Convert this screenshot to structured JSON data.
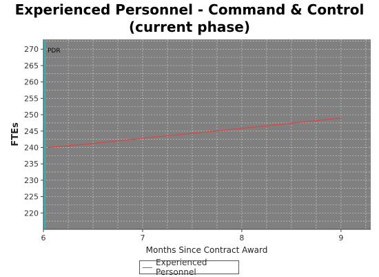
{
  "chart_data": {
    "type": "line",
    "title_line1": "Experienced Personnel - Command & Control",
    "title_line2": "(current phase)",
    "xlabel": "Months Since Contract Award",
    "ylabel": "FTEs",
    "xlim": [
      6,
      9.3
    ],
    "ylim": [
      215,
      273
    ],
    "x_ticks": [
      6,
      7,
      8,
      9
    ],
    "y_ticks": [
      220,
      225,
      230,
      235,
      240,
      245,
      250,
      255,
      260,
      265,
      270
    ],
    "grid": true,
    "legend_position": "bottom",
    "annotation": "PDR",
    "series": [
      {
        "name": "Experienced Personnel",
        "color": "#e04040",
        "x": [
          6.05,
          6.5,
          7.0,
          7.5,
          8.0,
          8.5,
          9.0
        ],
        "y": [
          240.0,
          241.2,
          242.8,
          244.3,
          245.8,
          247.4,
          249.0
        ]
      }
    ],
    "colors": {
      "plot_background": "#808080",
      "gridline": "#c8c8c8",
      "marker_line": "#20c0c0"
    }
  }
}
